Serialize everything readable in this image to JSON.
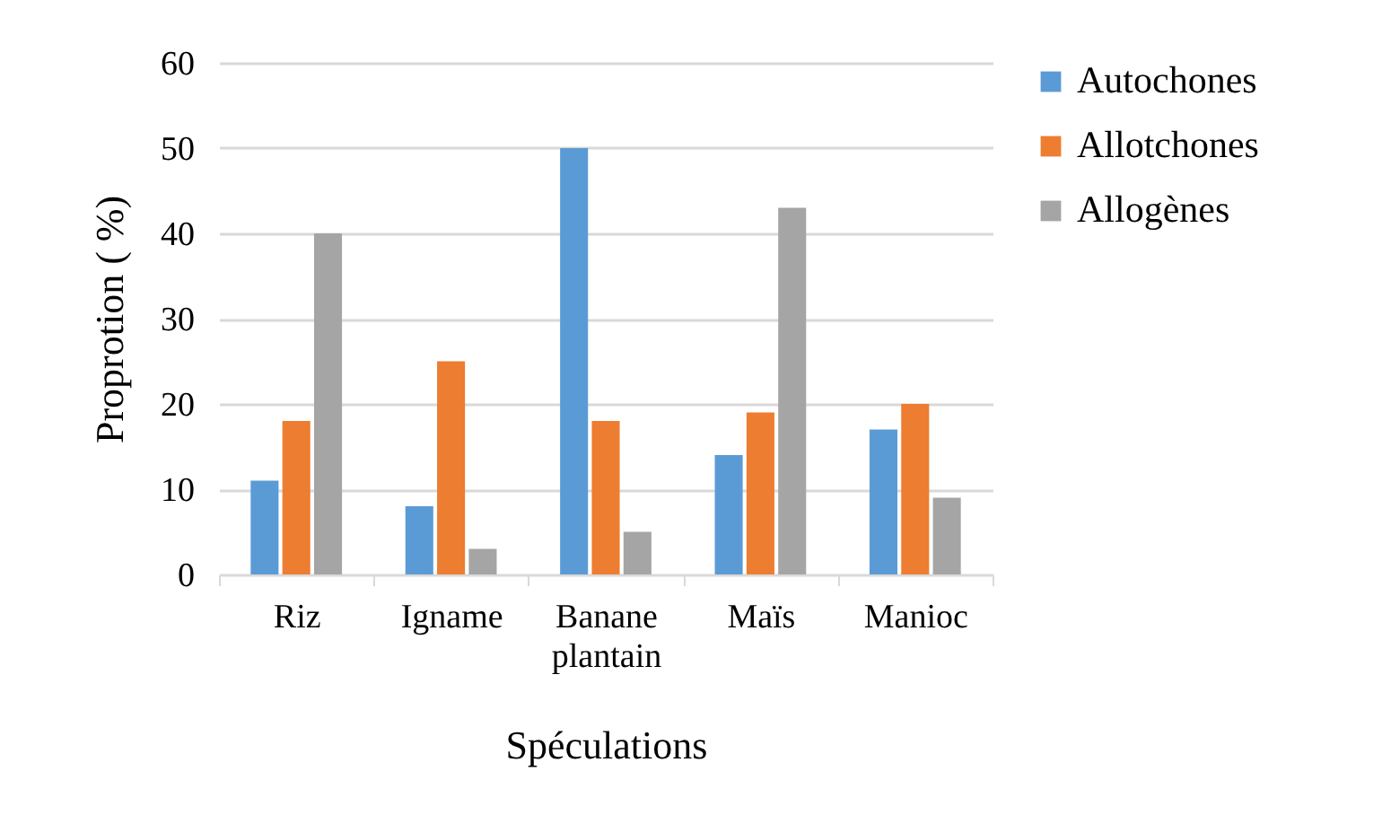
{
  "chart_data": {
    "type": "bar",
    "xlabel": "Spéculations",
    "ylabel": "Proprotion ( %)",
    "categories": [
      "Riz",
      "Igname",
      "Banane plantain",
      "Maïs",
      "Manioc"
    ],
    "series": [
      {
        "name": "Autochones",
        "color": "#5b9bd5",
        "values": [
          11,
          8,
          50,
          14,
          17
        ]
      },
      {
        "name": "Allotchones",
        "color": "#ed7d31",
        "values": [
          18,
          25,
          18,
          19,
          20
        ]
      },
      {
        "name": "Allogènes",
        "color": "#a5a5a5",
        "values": [
          40,
          3,
          5,
          43,
          9
        ]
      }
    ],
    "ylim": [
      0,
      60
    ],
    "yticks": [
      0,
      10,
      20,
      30,
      40,
      50,
      60
    ],
    "grid": "y",
    "legend": "right"
  }
}
